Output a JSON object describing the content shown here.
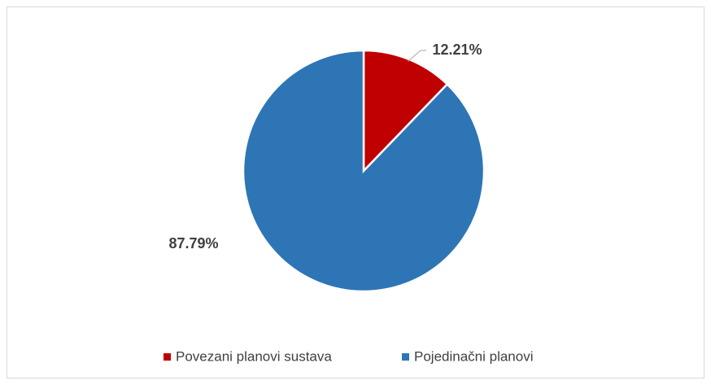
{
  "chart_data": {
    "type": "pie",
    "categories": [
      "Povezani planovi sustava",
      "Pojedinačni planovi"
    ],
    "values": [
      12.21,
      87.79
    ],
    "value_labels": [
      "12.21%",
      "87.79%"
    ],
    "colors": [
      "#c00000",
      "#2e75b6"
    ],
    "legend": "bottom"
  }
}
